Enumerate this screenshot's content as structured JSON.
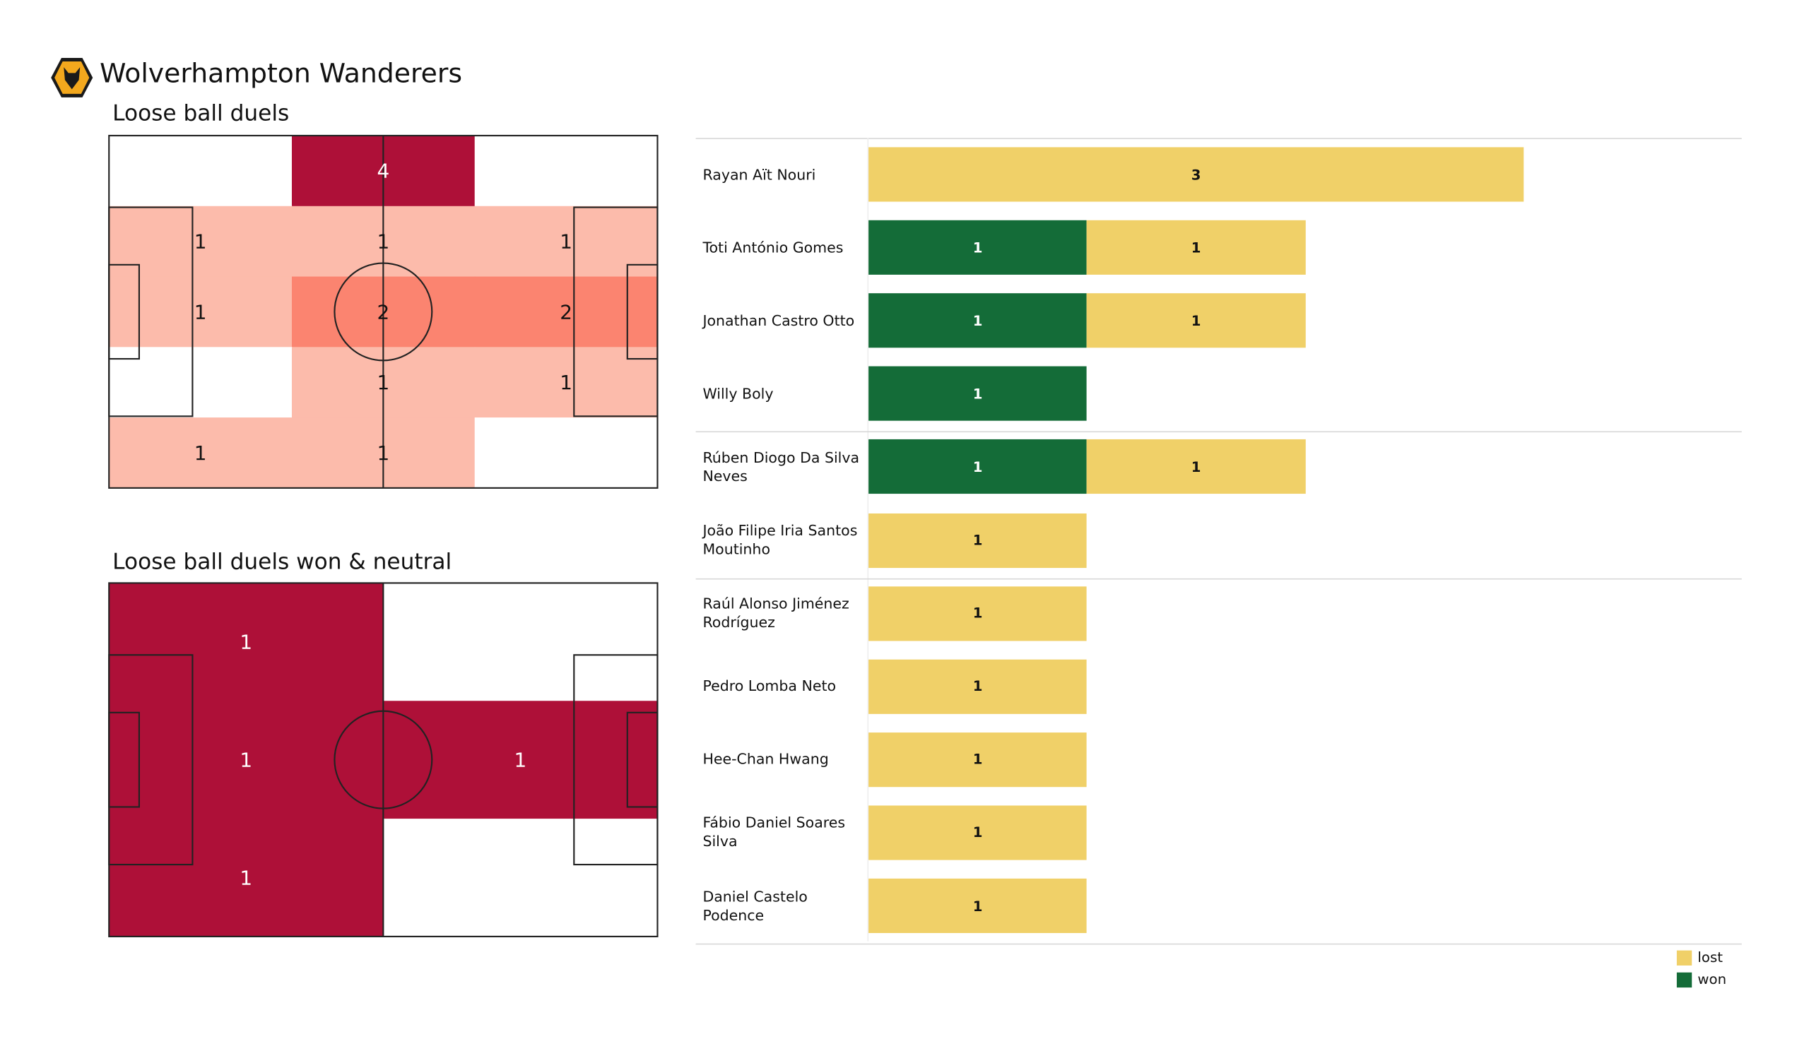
{
  "header": {
    "team": "Wolverhampton Wanderers",
    "logo": "wolves-crest-icon"
  },
  "colors": {
    "won": "#146c38",
    "lost": "#f0d068",
    "heat_high": "#ae1038",
    "heat_mid": "#fb8470",
    "heat_low": "#fcbbab",
    "empty": "#ffffff"
  },
  "chart_data": [
    {
      "type": "heatmap",
      "title": "Loose ball duels",
      "grid": [
        [
          0,
          4,
          0
        ],
        [
          1,
          1,
          1
        ],
        [
          1,
          2,
          2
        ],
        [
          0,
          1,
          1
        ],
        [
          1,
          1,
          0
        ]
      ]
    },
    {
      "type": "heatmap",
      "title": "Loose ball duels won & neutral",
      "grid": [
        [
          1,
          0
        ],
        [
          1,
          1
        ],
        [
          1,
          0
        ]
      ]
    },
    {
      "type": "bar",
      "orientation": "horizontal",
      "stacked": true,
      "categories": [
        "Rayan Aït Nouri",
        "Toti António Gomes",
        "Jonathan Castro Otto",
        "Willy Boly",
        "Rúben Diogo Da Silva Neves",
        "João Filipe Iria Santos Moutinho",
        "Raúl Alonso Jiménez Rodríguez",
        "Pedro Lomba Neto",
        "Hee-Chan Hwang",
        "Fábio Daniel Soares Silva",
        "Daniel Castelo Podence"
      ],
      "series": [
        {
          "name": "won",
          "values": [
            0,
            1,
            1,
            1,
            1,
            0,
            0,
            0,
            0,
            0,
            0
          ]
        },
        {
          "name": "lost",
          "values": [
            3,
            1,
            1,
            0,
            1,
            1,
            1,
            1,
            1,
            1,
            1
          ]
        }
      ],
      "group_breaks_after": [
        3,
        5,
        10
      ],
      "legend": {
        "placement": "bottom-right",
        "entries": [
          "lost",
          "won"
        ]
      }
    }
  ]
}
